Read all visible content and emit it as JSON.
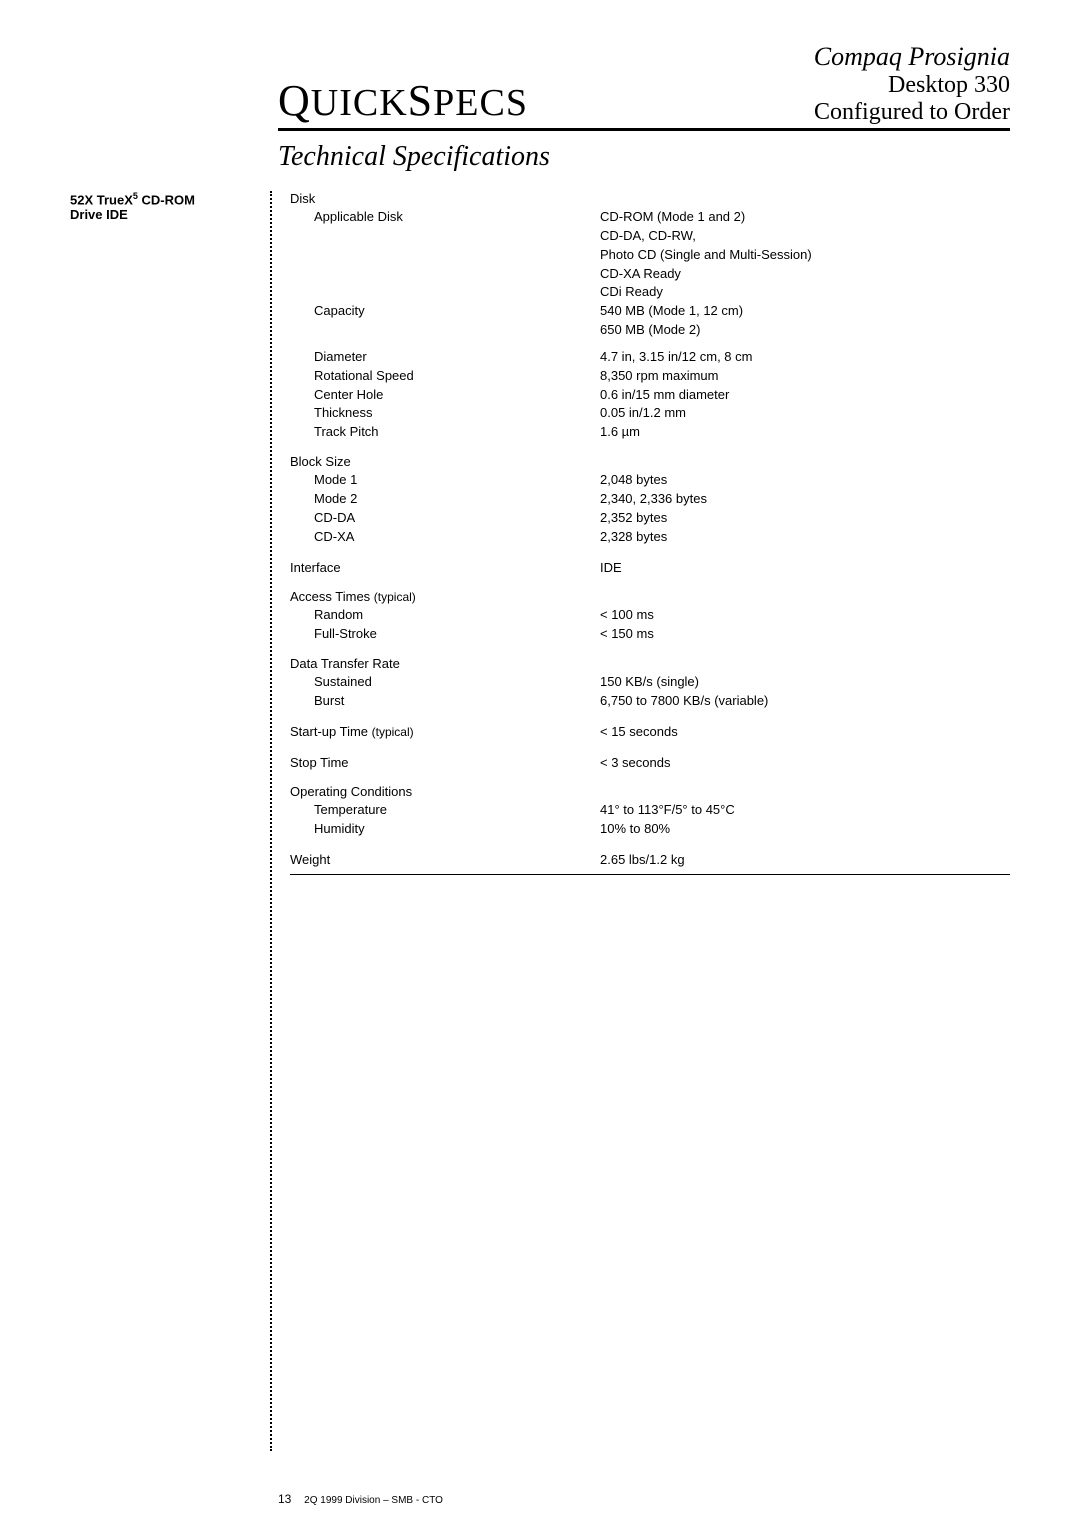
{
  "header": {
    "brand_parts": {
      "q": "Q",
      "uick": "UICK",
      "s": "S",
      "pecs": "PECS"
    },
    "product_line1": "Compaq Prosignia",
    "product_line2": "Desktop 330",
    "product_line3": "Configured to Order"
  },
  "section_title": "Technical Specifications",
  "sidebar": {
    "title_pre": "52X TrueX",
    "title_sup": "5",
    "title_post": " CD-ROM",
    "title_l2": "Drive IDE"
  },
  "specs": {
    "disk_label": "Disk",
    "applicable_disk": {
      "label": "Applicable Disk",
      "lines": [
        "CD-ROM (Mode 1 and 2)",
        "CD-DA, CD-RW,",
        "Photo CD (Single and Multi-Session)",
        "CD-XA Ready",
        "CDi Ready"
      ]
    },
    "capacity": {
      "label": "Capacity",
      "lines": [
        "540 MB (Mode 1, 12 cm)",
        "650 MB (Mode 2)"
      ]
    },
    "disk_rows": [
      {
        "label": "Diameter",
        "value": "4.7 in, 3.15 in/12 cm, 8 cm"
      },
      {
        "label": "Rotational Speed",
        "value": "8,350 rpm maximum"
      },
      {
        "label": "Center Hole",
        "value": "0.6 in/15 mm diameter"
      },
      {
        "label": "Thickness",
        "value": "0.05 in/1.2 mm"
      },
      {
        "label": "Track Pitch",
        "value": "1.6 µm"
      }
    ],
    "block_size_label": "Block Size",
    "block_rows": [
      {
        "label": "Mode 1",
        "value": "2,048 bytes"
      },
      {
        "label": "Mode 2",
        "value": "2,340, 2,336 bytes"
      },
      {
        "label": "CD-DA",
        "value": "2,352 bytes"
      },
      {
        "label": "CD-XA",
        "value": "2,328 bytes"
      }
    ],
    "interface": {
      "label": "Interface",
      "value": "IDE"
    },
    "access_label_pre": "Access Times ",
    "access_label_annot": "(typical)",
    "access_rows": [
      {
        "label": "Random",
        "value": "< 100 ms"
      },
      {
        "label": "Full-Stroke",
        "value": "< 150 ms"
      }
    ],
    "dtr_label": "Data Transfer Rate",
    "dtr_rows": [
      {
        "label": "Sustained",
        "value": "150 KB/s (single)"
      },
      {
        "label": "Burst",
        "value": "6,750 to 7800 KB/s (variable)"
      }
    ],
    "startup": {
      "label_pre": "Start-up Time ",
      "label_annot": "(typical)",
      "value": "< 15 seconds"
    },
    "stop": {
      "label": "Stop Time",
      "value": "< 3 seconds"
    },
    "opcond_label": "Operating Conditions",
    "opcond_rows": [
      {
        "label": "Temperature",
        "value": "41° to 113°F/5° to 45°C"
      },
      {
        "label": "Humidity",
        "value": "10% to 80%"
      }
    ],
    "weight": {
      "label": "Weight",
      "value": "2.65 lbs/1.2 kg"
    }
  },
  "footer": {
    "page": "13",
    "text": "2Q 1999  Division – SMB - CTO"
  }
}
